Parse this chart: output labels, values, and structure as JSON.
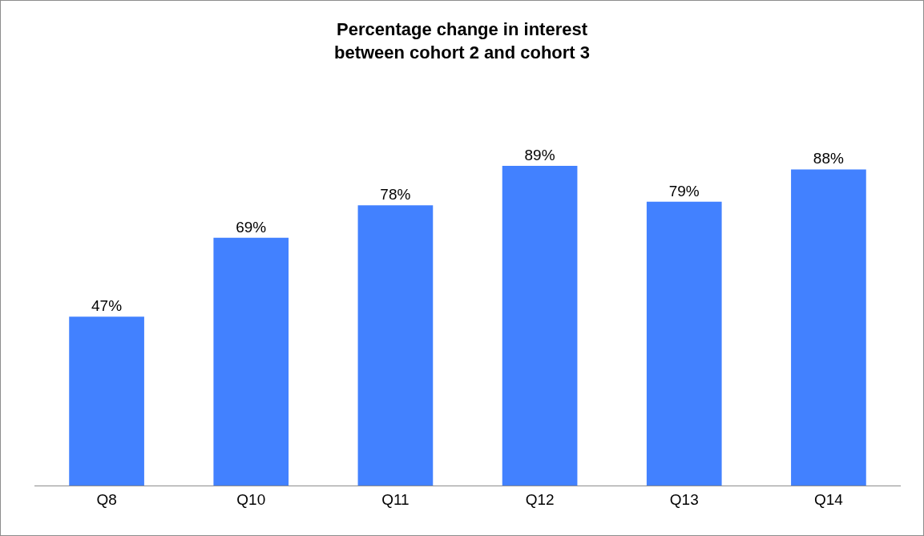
{
  "chart_data": {
    "type": "bar",
    "title": "Percentage change in interest\nbetween cohort 2 and cohort 3",
    "categories": [
      "Q8",
      "Q10",
      "Q11",
      "Q12",
      "Q13",
      "Q14"
    ],
    "values": [
      47,
      69,
      78,
      89,
      79,
      88
    ],
    "value_labels": [
      "47%",
      "69%",
      "78%",
      "89%",
      "79%",
      "88%"
    ],
    "color": "#4281ff",
    "tick_labels": "x",
    "grid": false,
    "legend": false
  }
}
